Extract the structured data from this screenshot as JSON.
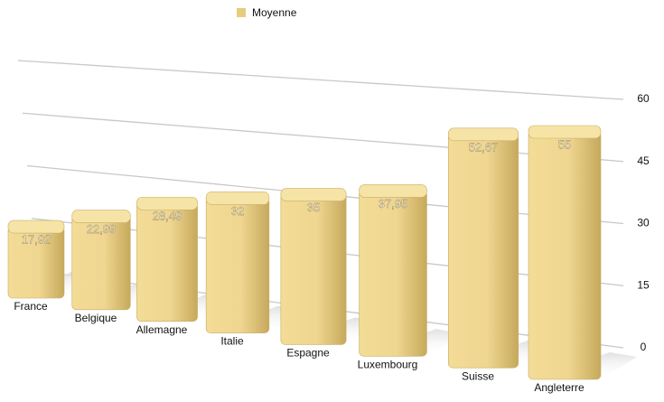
{
  "chart_data": {
    "type": "bar",
    "categories": [
      "France",
      "Belgique",
      "Allemagne",
      "Italie",
      "Espagne",
      "Luxembourg",
      "Suisse",
      "Angleterre"
    ],
    "series": [
      {
        "name": "Moyenne",
        "color": "#e6cc7e",
        "values": [
          17.92,
          22.99,
          28.49,
          32,
          35,
          37.95,
          52.67,
          55
        ],
        "value_labels": [
          "17,92",
          "22,99",
          "28,49",
          "32",
          "35",
          "37,95",
          "52,67",
          "55"
        ]
      }
    ],
    "ylim": [
      0,
      60
    ],
    "yticks": [
      0,
      15,
      30,
      45,
      60
    ],
    "grid": true
  }
}
